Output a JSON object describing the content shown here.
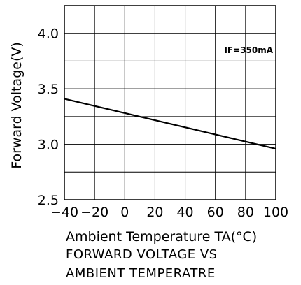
{
  "chart_data": {
    "type": "line",
    "title": "",
    "xlabel": "Ambient Temperature TA(°C)",
    "ylabel": "Forward Voltage(V)",
    "xlim": [
      -40,
      100
    ],
    "ylim": [
      2.5,
      4.25
    ],
    "x_ticks": [
      -40,
      -20,
      0,
      20,
      40,
      60,
      80,
      100
    ],
    "x_tick_labels": [
      "−40",
      "−20",
      "0",
      "20",
      "40",
      "60",
      "80",
      "100"
    ],
    "y_ticks": [
      2.5,
      3.0,
      3.5,
      4.0
    ],
    "y_tick_labels": [
      "2.5",
      "3.0",
      "3.5",
      "4.0"
    ],
    "grid": true,
    "annotation": "IF=350mA",
    "series": [
      {
        "x": [
          -40,
          100
        ],
        "y": [
          3.41,
          2.96
        ]
      }
    ]
  },
  "caption": {
    "line1": "FORWARD VOLTAGE VS",
    "line2": "AMBIENT TEMPERATRE"
  }
}
